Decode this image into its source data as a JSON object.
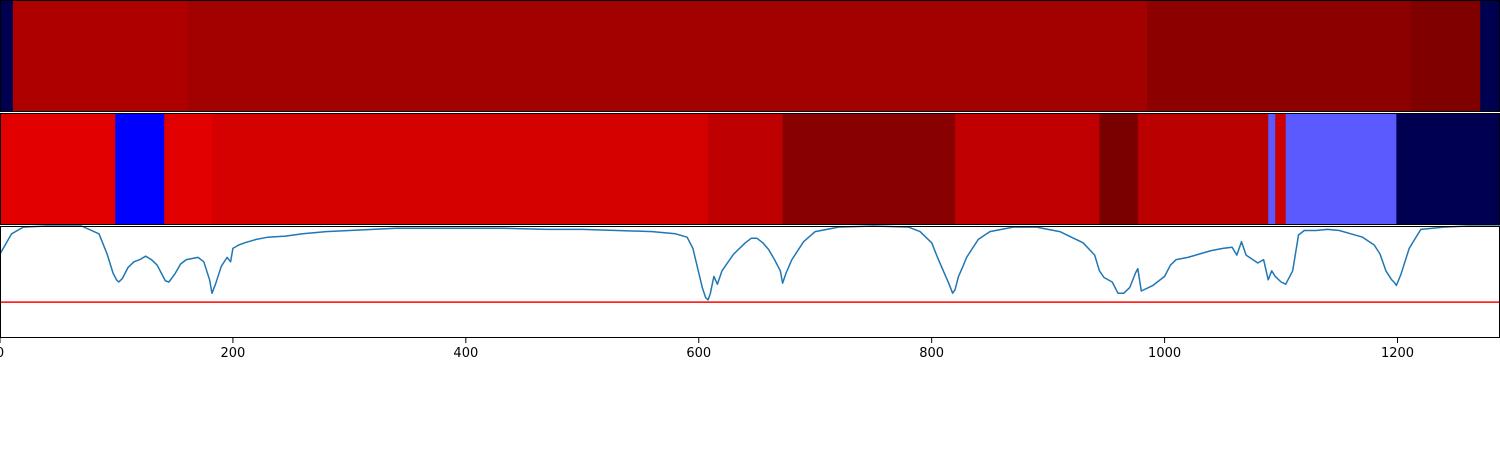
{
  "chart_data": {
    "type": "heatmap",
    "title": "",
    "xlabel": "",
    "ylabel": "",
    "xlim": [
      0,
      1288
    ],
    "xticks": [
      0,
      200,
      400,
      600,
      800,
      1000,
      1200
    ],
    "xtick_labels": [
      "0",
      "200",
      "400",
      "600",
      "800",
      "1000",
      "1200"
    ],
    "grid": false,
    "legend": "none",
    "band_rows": [
      {
        "segments": [
          {
            "start": 0,
            "end": 11,
            "color": "#000050"
          },
          {
            "start": 11,
            "end": 161,
            "color": "#af0000"
          },
          {
            "start": 161,
            "end": 985,
            "color": "#a30000"
          },
          {
            "start": 985,
            "end": 1211,
            "color": "#8c0000"
          },
          {
            "start": 1211,
            "end": 1271,
            "color": "#800000"
          },
          {
            "start": 1271,
            "end": 1288,
            "color": "#000050"
          }
        ]
      },
      {
        "segments": [
          {
            "start": 0,
            "end": 99,
            "color": "#e30000"
          },
          {
            "start": 99,
            "end": 141,
            "color": "#0000ff"
          },
          {
            "start": 141,
            "end": 182,
            "color": "#e30000"
          },
          {
            "start": 182,
            "end": 608,
            "color": "#d50000"
          },
          {
            "start": 608,
            "end": 672,
            "color": "#bf0000"
          },
          {
            "start": 672,
            "end": 820,
            "color": "#880000"
          },
          {
            "start": 820,
            "end": 944,
            "color": "#c00000"
          },
          {
            "start": 944,
            "end": 977,
            "color": "#7a0000"
          },
          {
            "start": 977,
            "end": 1089,
            "color": "#bb0000"
          },
          {
            "start": 1089,
            "end": 1095,
            "color": "#5a5aff"
          },
          {
            "start": 1095,
            "end": 1104,
            "color": "#cc0000"
          },
          {
            "start": 1104,
            "end": 1199,
            "color": "#5a5aff"
          },
          {
            "start": 1199,
            "end": 1288,
            "color": "#000050"
          }
        ]
      }
    ],
    "line_series": {
      "color": "#1f77b4",
      "ylim": [
        0,
        1
      ],
      "x": [
        0,
        10,
        20,
        40,
        70,
        85,
        92,
        97,
        100,
        102,
        105,
        110,
        115,
        120,
        125,
        130,
        135,
        140,
        142,
        145,
        150,
        155,
        160,
        165,
        170,
        175,
        180,
        182,
        185,
        190,
        195,
        198,
        200,
        205,
        210,
        220,
        230,
        245,
        260,
        280,
        300,
        320,
        340,
        360,
        380,
        400,
        430,
        470,
        500,
        530,
        560,
        580,
        590,
        595,
        600,
        603,
        606,
        608,
        610,
        613,
        616,
        620,
        630,
        640,
        645,
        650,
        655,
        660,
        665,
        670,
        672,
        675,
        680,
        690,
        700,
        720,
        750,
        780,
        790,
        800,
        805,
        810,
        815,
        818,
        820,
        823,
        826,
        830,
        840,
        850,
        870,
        890,
        900,
        910,
        920,
        930,
        940,
        944,
        948,
        955,
        960,
        965,
        970,
        975,
        977,
        980,
        990,
        1000,
        1005,
        1010,
        1020,
        1030,
        1040,
        1050,
        1058,
        1062,
        1066,
        1070,
        1080,
        1085,
        1089,
        1092,
        1095,
        1100,
        1104,
        1110,
        1115,
        1120,
        1130,
        1140,
        1150,
        1160,
        1170,
        1180,
        1185,
        1190,
        1195,
        1197,
        1199,
        1203,
        1210,
        1220,
        1240,
        1260,
        1288
      ],
      "y": [
        0.75,
        0.93,
        0.99,
        1.0,
        1.0,
        0.93,
        0.75,
        0.58,
        0.52,
        0.5,
        0.53,
        0.63,
        0.68,
        0.7,
        0.73,
        0.7,
        0.65,
        0.55,
        0.51,
        0.5,
        0.57,
        0.66,
        0.7,
        0.71,
        0.72,
        0.68,
        0.52,
        0.4,
        0.48,
        0.64,
        0.72,
        0.68,
        0.8,
        0.83,
        0.85,
        0.88,
        0.9,
        0.91,
        0.93,
        0.95,
        0.96,
        0.97,
        0.98,
        0.98,
        0.98,
        0.98,
        0.98,
        0.97,
        0.97,
        0.96,
        0.95,
        0.93,
        0.9,
        0.8,
        0.58,
        0.45,
        0.36,
        0.34,
        0.4,
        0.55,
        0.48,
        0.6,
        0.75,
        0.85,
        0.89,
        0.89,
        0.85,
        0.79,
        0.7,
        0.6,
        0.49,
        0.58,
        0.7,
        0.86,
        0.95,
        0.99,
        1.0,
        0.99,
        0.95,
        0.85,
        0.72,
        0.6,
        0.48,
        0.4,
        0.43,
        0.55,
        0.62,
        0.72,
        0.88,
        0.95,
        0.99,
        0.99,
        0.97,
        0.95,
        0.9,
        0.85,
        0.74,
        0.6,
        0.54,
        0.5,
        0.4,
        0.4,
        0.45,
        0.58,
        0.62,
        0.42,
        0.47,
        0.55,
        0.65,
        0.7,
        0.72,
        0.75,
        0.78,
        0.8,
        0.81,
        0.74,
        0.86,
        0.74,
        0.67,
        0.7,
        0.52,
        0.6,
        0.55,
        0.5,
        0.48,
        0.6,
        0.92,
        0.96,
        0.96,
        0.97,
        0.96,
        0.93,
        0.9,
        0.83,
        0.75,
        0.6,
        0.52,
        0.5,
        0.47,
        0.57,
        0.8,
        0.97,
        0.99,
        1.0,
        1.0
      ],
      "threshold": {
        "value": 0.32,
        "color": "#ff0000"
      }
    }
  }
}
